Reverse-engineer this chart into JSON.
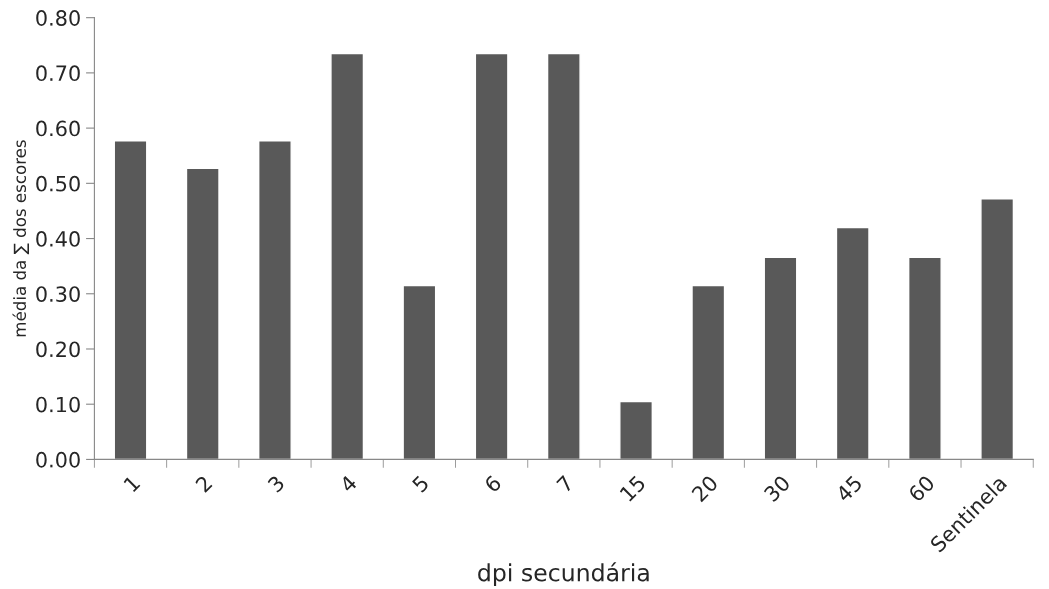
{
  "chart_data": {
    "type": "bar",
    "xlabel": "dpi secundária",
    "ylabel": "média da ∑ dos escores",
    "categories": [
      "1",
      "2",
      "3",
      "4",
      "5",
      "6",
      "7",
      "15",
      "20",
      "30",
      "45",
      "60",
      "Sentinela"
    ],
    "values": [
      0.577,
      0.527,
      0.577,
      0.735,
      0.315,
      0.735,
      0.735,
      0.105,
      0.315,
      0.366,
      0.42,
      0.366,
      0.472
    ],
    "color": "#595959",
    "ylim": [
      0,
      0.8
    ],
    "yticks": [
      {
        "value": 0,
        "label": "0.00"
      },
      {
        "value": 0.1,
        "label": "0.10"
      },
      {
        "value": 0.2,
        "label": "0.20"
      },
      {
        "value": 0.3,
        "label": "0.30"
      },
      {
        "value": 0.4,
        "label": "0.40"
      },
      {
        "value": 0.5,
        "label": "0.50"
      },
      {
        "value": 0.6,
        "label": "0.60"
      },
      {
        "value": 0.7,
        "label": "0.70"
      },
      {
        "value": 0.8,
        "label": "0.80"
      }
    ],
    "grid": false,
    "legend": false
  }
}
